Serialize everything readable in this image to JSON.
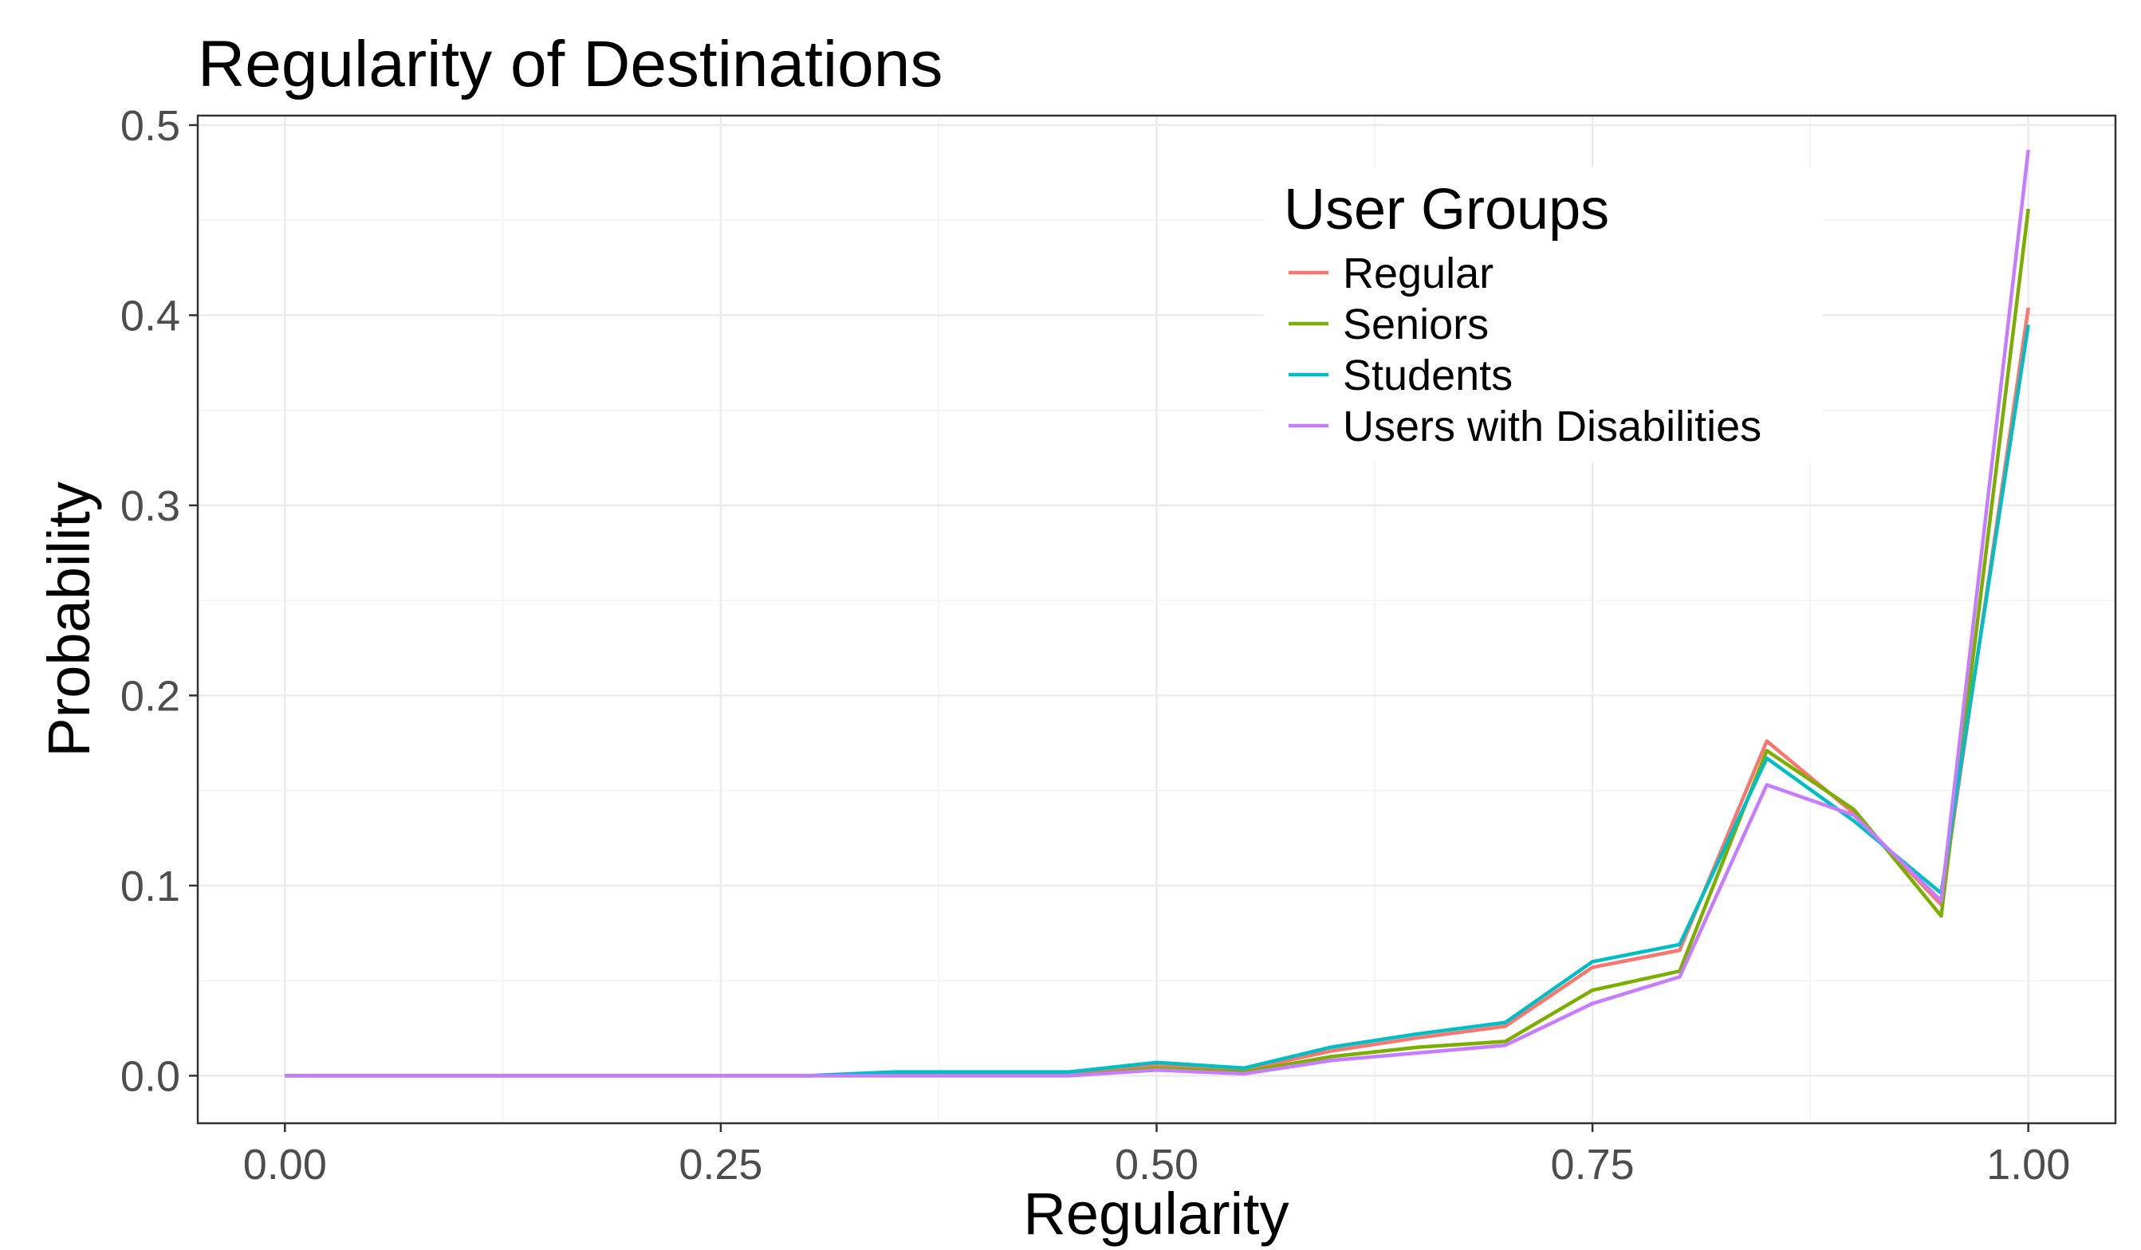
{
  "chart_data": {
    "type": "line",
    "title": "Regularity of Destinations",
    "xlabel": "Regularity",
    "ylabel": "Probability",
    "xlim": [
      -0.05,
      1.05
    ],
    "ylim": [
      -0.025,
      0.505
    ],
    "x_ticks": [
      0.0,
      0.25,
      0.5,
      0.75,
      1.0
    ],
    "x_tick_labels": [
      "0.00",
      "0.25",
      "0.50",
      "0.75",
      "1.00"
    ],
    "y_ticks": [
      0.0,
      0.1,
      0.2,
      0.3,
      0.4,
      0.5
    ],
    "y_tick_labels": [
      "0.0",
      "0.1",
      "0.2",
      "0.3",
      "0.4",
      "0.5"
    ],
    "grid": true,
    "legend": {
      "title": "User Groups",
      "position": "top-right"
    },
    "x": [
      0.0,
      0.05,
      0.1,
      0.15,
      0.2,
      0.25,
      0.3,
      0.35,
      0.4,
      0.45,
      0.5,
      0.55,
      0.6,
      0.65,
      0.7,
      0.75,
      0.8,
      0.85,
      0.9,
      0.95,
      1.0
    ],
    "series": [
      {
        "name": "Regular",
        "color": "#F8766D",
        "values": [
          0.0,
          0.0,
          0.0,
          0.0,
          0.0,
          0.0,
          0.0,
          0.001,
          0.001,
          0.001,
          0.006,
          0.003,
          0.013,
          0.02,
          0.026,
          0.057,
          0.066,
          0.176,
          0.138,
          0.09,
          0.404
        ]
      },
      {
        "name": "Seniors",
        "color": "#7CAE00",
        "values": [
          0.0,
          0.0,
          0.0,
          0.0,
          0.0,
          0.0,
          0.0,
          0.0,
          0.0,
          0.0,
          0.004,
          0.002,
          0.01,
          0.015,
          0.018,
          0.045,
          0.055,
          0.171,
          0.14,
          0.084,
          0.456
        ]
      },
      {
        "name": "Students",
        "color": "#00BFC4",
        "values": [
          0.0,
          0.0,
          0.0,
          0.0,
          0.0,
          0.0,
          0.0,
          0.002,
          0.002,
          0.002,
          0.007,
          0.004,
          0.015,
          0.022,
          0.028,
          0.06,
          0.069,
          0.167,
          0.134,
          0.096,
          0.395
        ]
      },
      {
        "name": "Users with Disabilities",
        "color": "#C77CFF",
        "values": [
          0.0,
          0.0,
          0.0,
          0.0,
          0.0,
          0.0,
          0.0,
          0.0,
          0.0,
          0.0,
          0.003,
          0.001,
          0.008,
          0.012,
          0.016,
          0.038,
          0.052,
          0.153,
          0.137,
          0.092,
          0.487
        ]
      }
    ]
  }
}
